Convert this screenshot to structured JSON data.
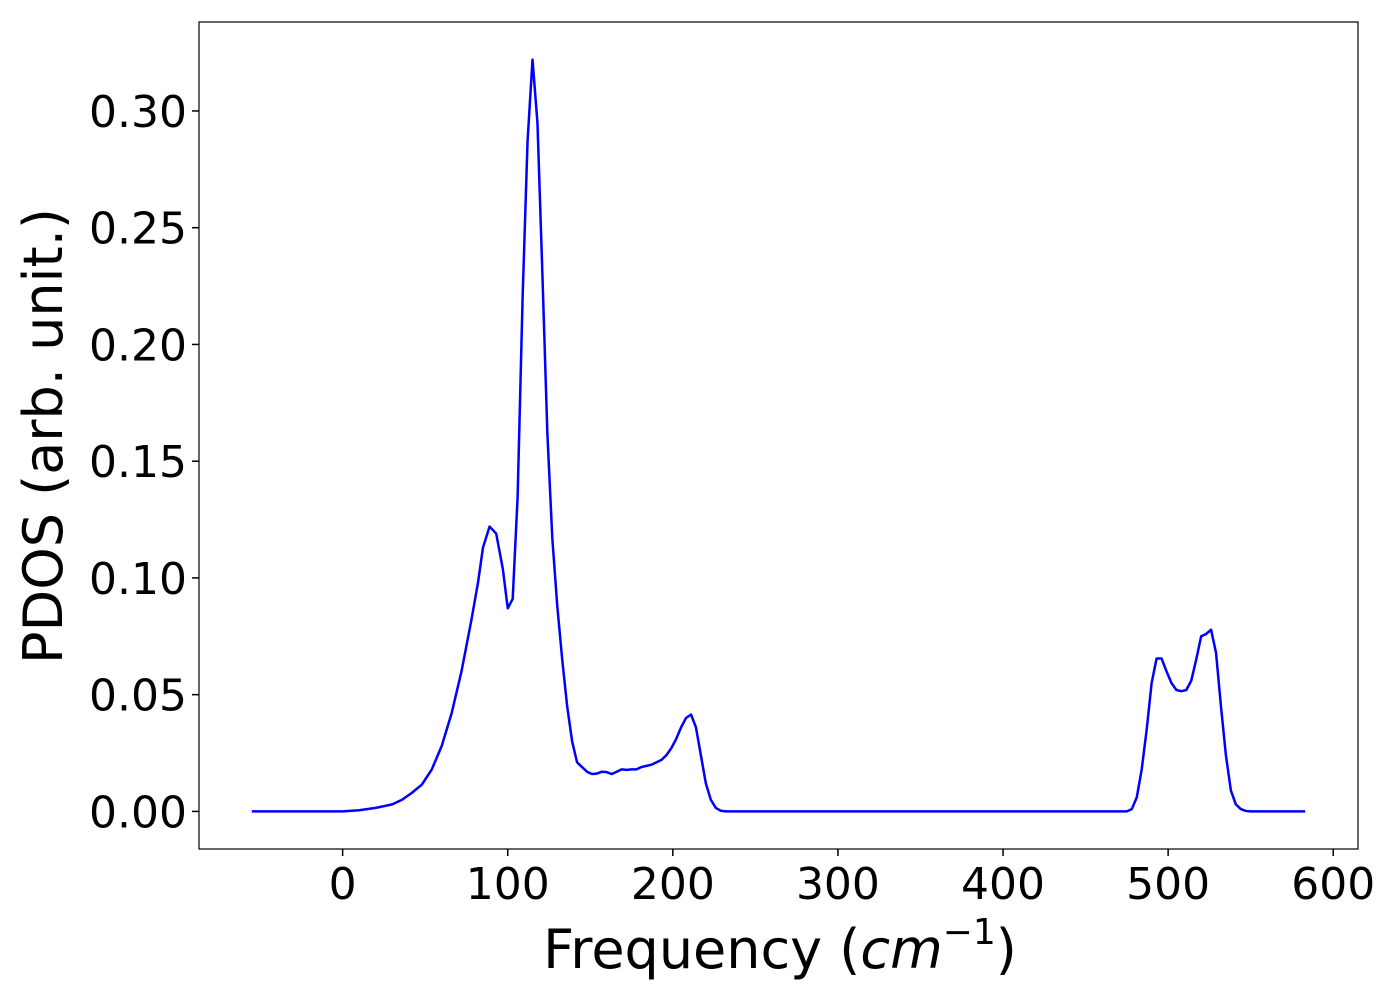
{
  "chart_data": {
    "type": "line",
    "xlabel": [
      "Frequency (",
      "cm",
      "−1",
      ")"
    ],
    "ylabel": "PDOS (arb. unit.)",
    "color": "#0000ff",
    "x": [
      -55,
      -40,
      -20,
      0,
      10,
      20,
      30,
      36,
      42,
      48,
      54,
      60,
      66,
      72,
      78,
      82,
      85,
      89,
      93,
      97,
      100,
      103,
      106,
      109,
      112,
      115,
      118,
      121,
      124,
      127,
      130,
      133,
      136,
      139,
      142,
      145,
      148,
      151,
      154,
      157,
      160,
      163,
      166,
      169,
      172,
      175,
      178,
      181,
      184,
      187,
      190,
      193,
      196,
      199,
      202,
      205,
      208,
      211,
      214,
      217,
      220,
      223,
      226,
      229,
      232,
      300,
      400,
      475,
      478,
      481,
      484,
      487,
      490,
      493,
      496,
      499,
      502,
      505,
      508,
      511,
      514,
      517,
      520,
      523,
      526,
      529,
      532,
      535,
      538,
      541,
      544,
      547,
      550,
      583
    ],
    "values": [
      0,
      0,
      0,
      0,
      0.0005,
      0.0015,
      0.003,
      0.005,
      0.008,
      0.0115,
      0.018,
      0.028,
      0.042,
      0.06,
      0.082,
      0.098,
      0.113,
      0.122,
      0.119,
      0.104,
      0.087,
      0.091,
      0.135,
      0.22,
      0.287,
      0.322,
      0.295,
      0.23,
      0.162,
      0.117,
      0.088,
      0.065,
      0.045,
      0.03,
      0.021,
      0.019,
      0.017,
      0.016,
      0.0162,
      0.017,
      0.0168,
      0.016,
      0.017,
      0.018,
      0.0178,
      0.018,
      0.018,
      0.019,
      0.0195,
      0.02,
      0.021,
      0.022,
      0.024,
      0.027,
      0.031,
      0.036,
      0.04,
      0.0415,
      0.036,
      0.024,
      0.012,
      0.005,
      0.0015,
      0.0003,
      0,
      0,
      0,
      0,
      0.001,
      0.006,
      0.018,
      0.035,
      0.055,
      0.0655,
      0.0655,
      0.06,
      0.055,
      0.052,
      0.0515,
      0.052,
      0.056,
      0.065,
      0.075,
      0.076,
      0.0778,
      0.068,
      0.045,
      0.024,
      0.009,
      0.003,
      0.001,
      0.0002,
      0,
      0
    ],
    "xlim": [
      -87,
      615
    ],
    "ylim": [
      -0.0161,
      0.3381
    ],
    "xticks": [
      0,
      100,
      200,
      300,
      400,
      500,
      600
    ],
    "yticks": [
      {
        "value": 0,
        "label": "0.00"
      },
      {
        "value": 0.05,
        "label": "0.05"
      },
      {
        "value": 0.1,
        "label": "0.10"
      },
      {
        "value": 0.15,
        "label": "0.15"
      },
      {
        "value": 0.2,
        "label": "0.20"
      },
      {
        "value": 0.25,
        "label": "0.25"
      },
      {
        "value": 0.3,
        "label": "0.30"
      }
    ]
  }
}
